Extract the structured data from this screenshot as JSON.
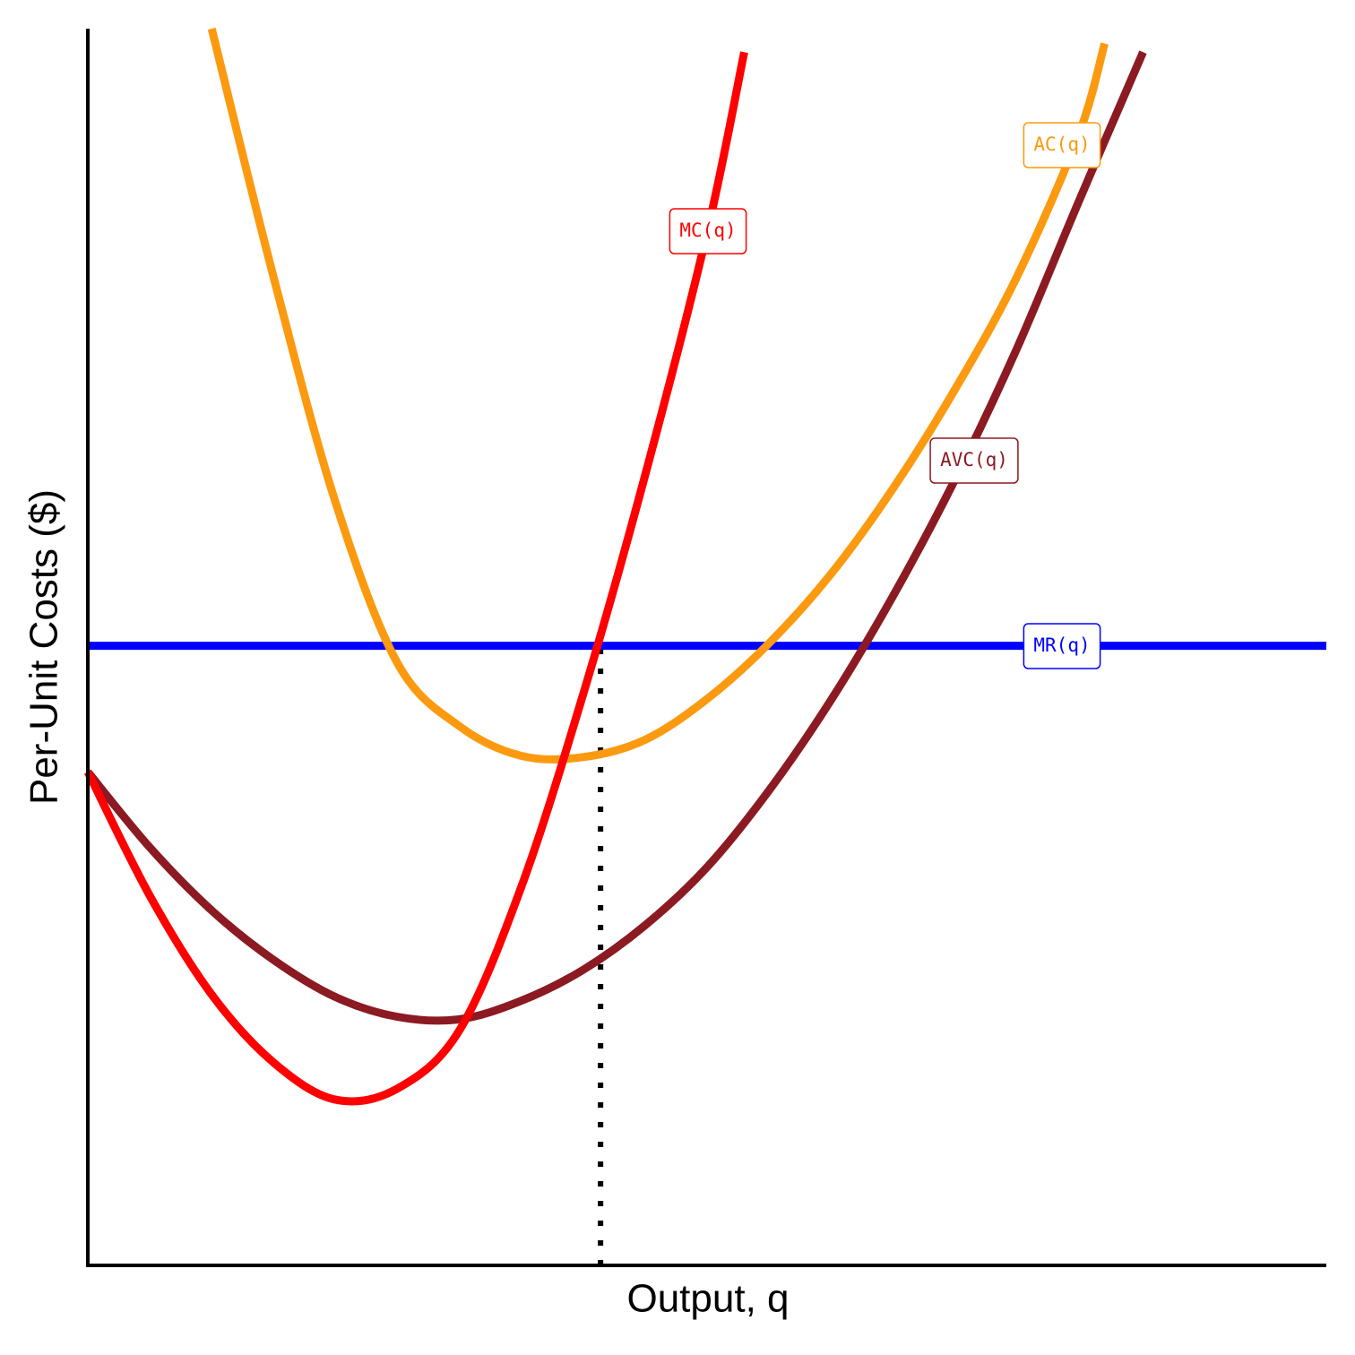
{
  "chart_data": {
    "type": "line",
    "xlabel": "Output, q",
    "ylabel": "Per-Unit Costs ($)",
    "xlim": [
      0,
      10
    ],
    "ylim": [
      0,
      10
    ],
    "series": [
      {
        "name": "MC(q)",
        "color": "#ff0000",
        "x": [
          0,
          0.5,
          1,
          1.5,
          2,
          2.5,
          3,
          3.5,
          4,
          4.5,
          5,
          5.3
        ],
        "values": [
          3.99,
          2.99,
          2.19,
          1.64,
          1.34,
          1.43,
          1.9,
          3.06,
          4.62,
          6.39,
          8.35,
          9.81
        ]
      },
      {
        "name": "AC(q)",
        "color": "#fb9a10",
        "x": [
          1.0,
          1.5,
          2,
          2.5,
          3,
          3.5,
          4,
          4.5,
          5,
          5.5,
          6,
          6.5,
          7,
          7.5,
          8,
          8.21
        ],
        "values": [
          10.0,
          7.99,
          6.17,
          4.87,
          4.36,
          4.12,
          4.11,
          4.25,
          4.58,
          5.03,
          5.59,
          6.28,
          7.08,
          7.99,
          9.14,
          9.88
        ]
      },
      {
        "name": "AVC(q)",
        "color": "#8b1a22",
        "x": [
          0,
          0.5,
          1,
          1.5,
          2,
          2.5,
          3,
          3.5,
          4,
          4.5,
          5,
          5.5,
          6,
          6.5,
          7,
          7.5,
          8,
          8.52
        ],
        "values": [
          3.99,
          3.38,
          2.87,
          2.47,
          2.17,
          2.01,
          1.99,
          2.14,
          2.39,
          2.75,
          3.22,
          3.84,
          4.57,
          5.41,
          6.35,
          7.41,
          8.6,
          9.81
        ]
      },
      {
        "name": "MR(q)",
        "color": "#0000ff",
        "x": [
          0,
          10
        ],
        "values": [
          5.01,
          5.01
        ]
      }
    ],
    "guides": [
      {
        "x": 4.14,
        "y": 5.01
      }
    ]
  }
}
